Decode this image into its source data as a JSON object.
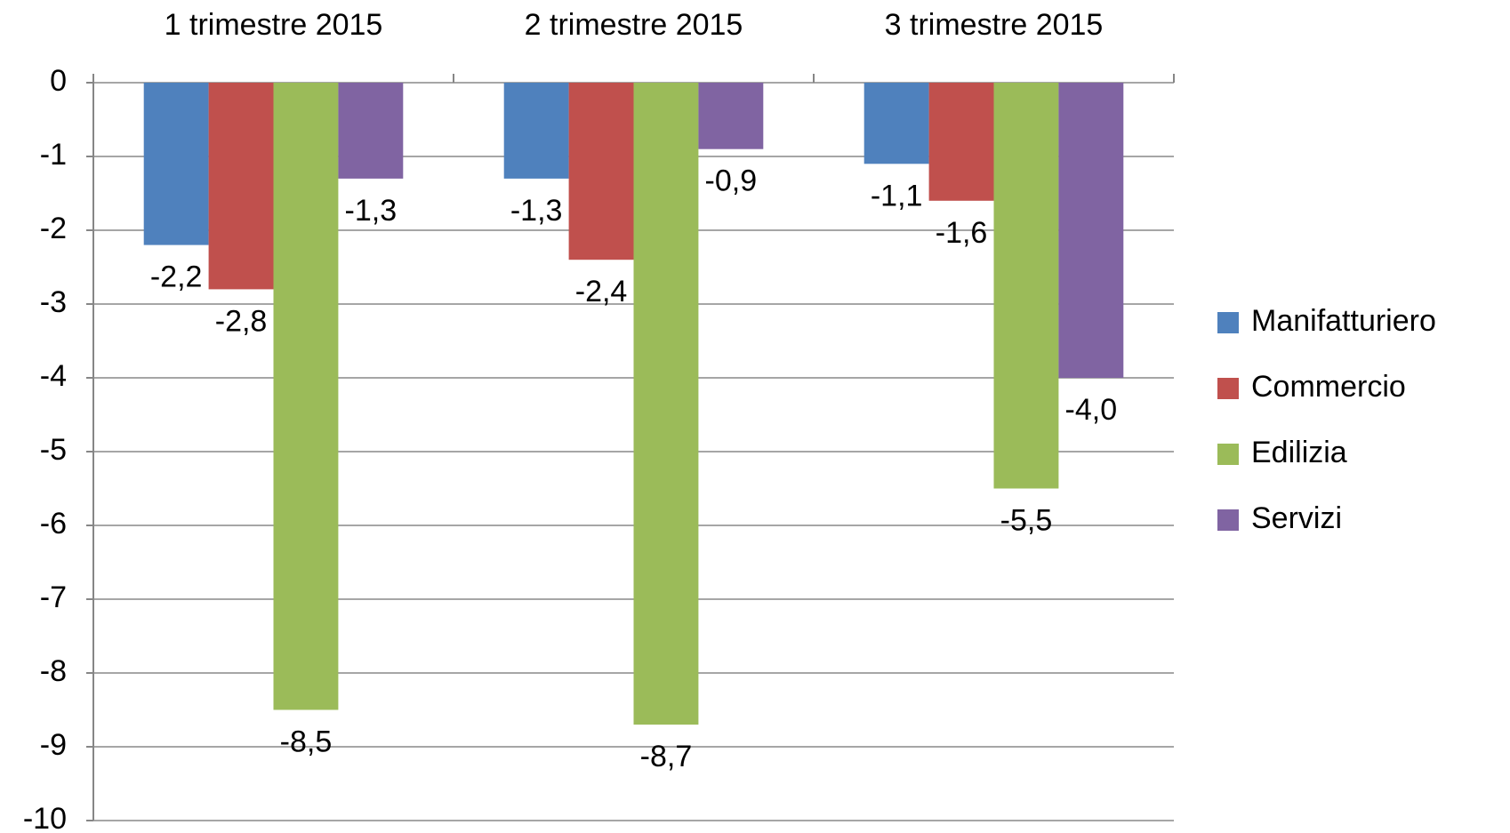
{
  "chart_data": {
    "type": "bar",
    "categories": [
      "1 trimestre 2015",
      "2 trimestre 2015",
      "3 trimestre 2015"
    ],
    "series": [
      {
        "name": "Manifatturiero",
        "color": "#4f81bd",
        "values": [
          -2.2,
          -1.3,
          -1.1
        ],
        "value_labels": [
          "-2,2",
          "-1,3",
          "-1,1"
        ]
      },
      {
        "name": "Commercio",
        "color": "#c0504d",
        "values": [
          -2.8,
          -2.4,
          -1.6
        ],
        "value_labels": [
          "-2,8",
          "-2,4",
          "-1,6"
        ]
      },
      {
        "name": "Edilizia",
        "color": "#9bbb59",
        "values": [
          -8.5,
          -8.7,
          -5.5
        ],
        "value_labels": [
          "-8,5",
          "-8,7",
          "-5,5"
        ]
      },
      {
        "name": "Servizi",
        "color": "#8064a2",
        "values": [
          -1.3,
          -0.9,
          -4.0
        ],
        "value_labels": [
          "-1,3",
          "-0,9",
          "-4,0"
        ]
      }
    ],
    "ylim": [
      -10,
      0
    ],
    "yticks": [
      0,
      -1,
      -2,
      -3,
      -4,
      -5,
      -6,
      -7,
      -8,
      -9,
      -10
    ],
    "grid": true,
    "legend": "right"
  }
}
